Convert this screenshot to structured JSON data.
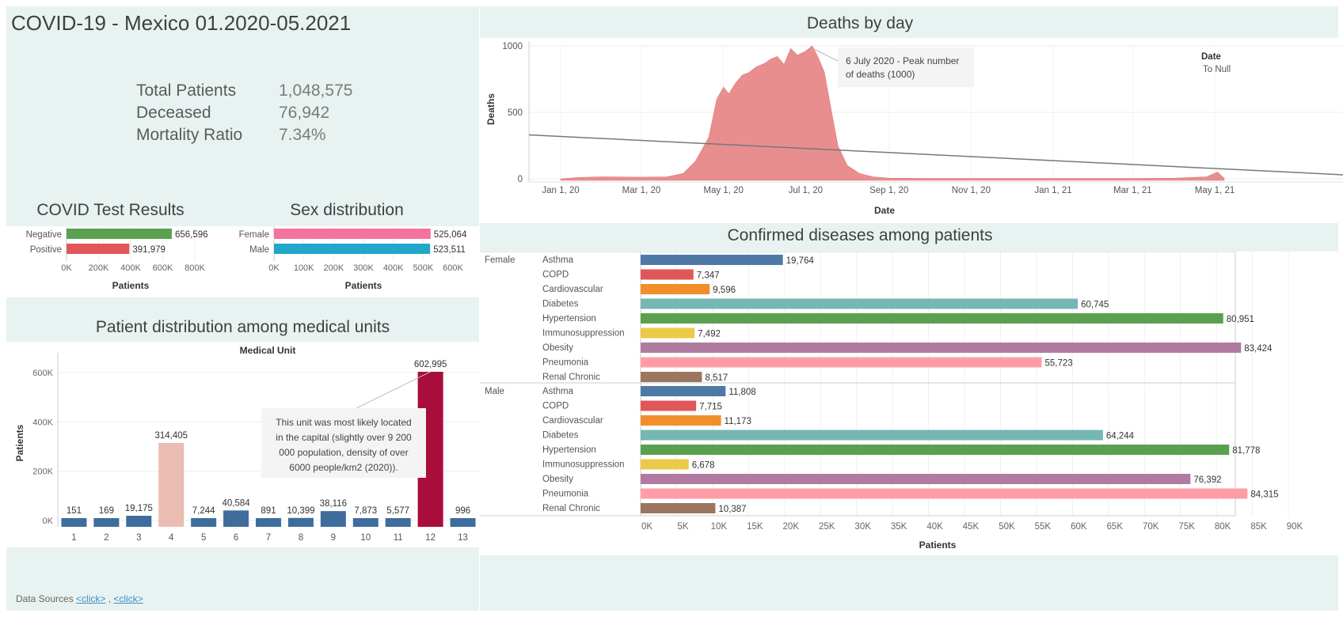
{
  "header": {
    "title": "COVID-19 - Mexico 01.2020-05.2021"
  },
  "kpis": [
    {
      "label": "Total Patients",
      "value": "1,048,575"
    },
    {
      "label": "Deceased",
      "value": "76,942"
    },
    {
      "label": "Mortality Ratio",
      "value": "7.34%"
    }
  ],
  "footer": {
    "prefix": "Data Sources",
    "link1": "<click>",
    "sep": " , ",
    "link2": "<click>"
  },
  "colors": {
    "mint_bg": "#e8f3f1",
    "green": "#59a14f",
    "red": "#e15759",
    "pink": "#f472a0",
    "teal": "#20a7c9",
    "blue": "#3e6d9c",
    "highlight": "#a80d3c",
    "salmon": "#ebbcb1",
    "area": "#e88e8e"
  },
  "chart_data": [
    {
      "type": "bar",
      "title": "COVID Test Results",
      "orientation": "horizontal",
      "categories": [
        "Negative",
        "Positive"
      ],
      "values": [
        656596,
        391979
      ],
      "value_labels": [
        "656,596",
        "391,979"
      ],
      "colors": [
        "#59a14f",
        "#e15759"
      ],
      "xlabel": "Patients",
      "xlim": [
        0,
        800000
      ],
      "xticks": [
        "0K",
        "200K",
        "400K",
        "600K",
        "800K"
      ]
    },
    {
      "type": "bar",
      "title": "Sex distribution",
      "orientation": "horizontal",
      "categories": [
        "Female",
        "Male"
      ],
      "values": [
        525064,
        523511
      ],
      "value_labels": [
        "525,064",
        "523,511"
      ],
      "colors": [
        "#f472a0",
        "#20a7c9"
      ],
      "xlabel": "Patients",
      "xlim": [
        0,
        600000
      ],
      "xticks": [
        "0K",
        "100K",
        "200K",
        "300K",
        "400K",
        "500K",
        "600K"
      ]
    },
    {
      "type": "bar",
      "title": "Patient distribution among medical units",
      "header": "Medical Unit",
      "categories": [
        "1",
        "2",
        "3",
        "4",
        "5",
        "6",
        "7",
        "8",
        "9",
        "10",
        "11",
        "12",
        "13"
      ],
      "values": [
        151,
        169,
        19175,
        314405,
        7244,
        40584,
        891,
        10399,
        38116,
        7873,
        5577,
        602995,
        996
      ],
      "value_labels": [
        "151",
        "169",
        "19,175",
        "314,405",
        "7,244",
        "40,584",
        "891",
        "10,399",
        "38,116",
        "7,873",
        "5,577",
        "602,995",
        "996"
      ],
      "highlight": {
        "4": "#ebbcb1",
        "12": "#a80d3c"
      },
      "ylabel": "Patients",
      "ylim": [
        0,
        680000
      ],
      "yticks": [
        {
          "v": 0,
          "t": "0K"
        },
        {
          "v": 200000,
          "t": "200K"
        },
        {
          "v": 400000,
          "t": "400K"
        },
        {
          "v": 600000,
          "t": "600K"
        }
      ],
      "annotation": [
        "This unit was most likely located",
        "in the capital (slightly over 9 200",
        "000 population, density of over",
        "6000 people/km2 (2020))."
      ]
    },
    {
      "type": "area",
      "title": "Deaths by day",
      "xlabel": "Date",
      "ylabel": "Deaths",
      "ylim": [
        0,
        1000
      ],
      "yticks": [
        "0",
        "500",
        "1000"
      ],
      "xticks": [
        "Jan 1, 20",
        "Mar 1, 20",
        "May 1, 20",
        "Jul 1, 20",
        "Sep 1, 20",
        "Nov 1, 20",
        "Jan 1, 21",
        "Mar 1, 21",
        "May 1, 21"
      ],
      "points": [
        [
          "2020-01-01",
          0
        ],
        [
          "2020-01-15",
          10
        ],
        [
          "2020-02-01",
          15
        ],
        [
          "2020-03-01",
          12
        ],
        [
          "2020-03-20",
          15
        ],
        [
          "2020-04-01",
          40
        ],
        [
          "2020-04-10",
          130
        ],
        [
          "2020-04-20",
          310
        ],
        [
          "2020-04-26",
          600
        ],
        [
          "2020-05-01",
          690
        ],
        [
          "2020-05-05",
          640
        ],
        [
          "2020-05-10",
          720
        ],
        [
          "2020-05-15",
          780
        ],
        [
          "2020-05-20",
          800
        ],
        [
          "2020-05-25",
          840
        ],
        [
          "2020-06-01",
          870
        ],
        [
          "2020-06-05",
          900
        ],
        [
          "2020-06-10",
          920
        ],
        [
          "2020-06-15",
          860
        ],
        [
          "2020-06-20",
          980
        ],
        [
          "2020-06-25",
          930
        ],
        [
          "2020-07-01",
          960
        ],
        [
          "2020-07-06",
          1000
        ],
        [
          "2020-07-10",
          920
        ],
        [
          "2020-07-15",
          800
        ],
        [
          "2020-07-20",
          520
        ],
        [
          "2020-07-25",
          250
        ],
        [
          "2020-08-01",
          100
        ],
        [
          "2020-08-10",
          40
        ],
        [
          "2020-08-20",
          15
        ],
        [
          "2020-09-01",
          5
        ],
        [
          "2020-10-01",
          3
        ],
        [
          "2020-11-01",
          3
        ],
        [
          "2020-12-01",
          3
        ],
        [
          "2021-01-01",
          3
        ],
        [
          "2021-02-01",
          3
        ],
        [
          "2021-03-01",
          3
        ],
        [
          "2021-04-01",
          5
        ],
        [
          "2021-04-25",
          15
        ],
        [
          "2021-05-03",
          50
        ],
        [
          "2021-05-08",
          5
        ]
      ],
      "trend_line": [
        [
          "2020-01-01",
          330
        ],
        [
          "2021-05-25",
          30
        ]
      ],
      "annotation": [
        "6 July 2020 - Peak number",
        "of deaths (1000)"
      ],
      "annotation_point": [
        "2020-07-06",
        1000
      ],
      "legend": {
        "title": "Date",
        "item": "To Null",
        "placement": "top-right"
      }
    },
    {
      "type": "bar",
      "title": "Confirmed diseases among patients",
      "orientation": "horizontal",
      "groups": [
        "Female",
        "Male"
      ],
      "categories": [
        "Asthma",
        "COPD",
        "Cardiovascular",
        "Diabetes",
        "Hypertension",
        "Immunosuppression",
        "Obesity",
        "Pneumonia",
        "Renal Chronic"
      ],
      "category_colors": [
        "#4e79a7",
        "#e15759",
        "#f28e2b",
        "#76b7b2",
        "#59a14f",
        "#edc948",
        "#b07aa1",
        "#ff9da7",
        "#9c755f"
      ],
      "series": [
        {
          "name": "Female",
          "values": [
            19764,
            7347,
            9596,
            60745,
            80951,
            7492,
            83424,
            55723,
            8517
          ],
          "value_labels": [
            "19,764",
            "7,347",
            "9,596",
            "60,745",
            "80,951",
            "7,492",
            "83,424",
            "55,723",
            "8,517"
          ]
        },
        {
          "name": "Male",
          "values": [
            11808,
            7715,
            11173,
            64244,
            81778,
            6678,
            76392,
            84315,
            10387
          ],
          "value_labels": [
            "11,808",
            "7,715",
            "11,173",
            "64,244",
            "81,778",
            "6,678",
            "76,392",
            "84,315",
            "10,387"
          ]
        }
      ],
      "xlabel": "Patients",
      "xlim": [
        0,
        90000
      ],
      "xticks": [
        "0K",
        "5K",
        "10K",
        "15K",
        "20K",
        "25K",
        "30K",
        "35K",
        "40K",
        "45K",
        "50K",
        "55K",
        "60K",
        "65K",
        "70K",
        "75K",
        "80K",
        "85K",
        "90K"
      ]
    }
  ]
}
